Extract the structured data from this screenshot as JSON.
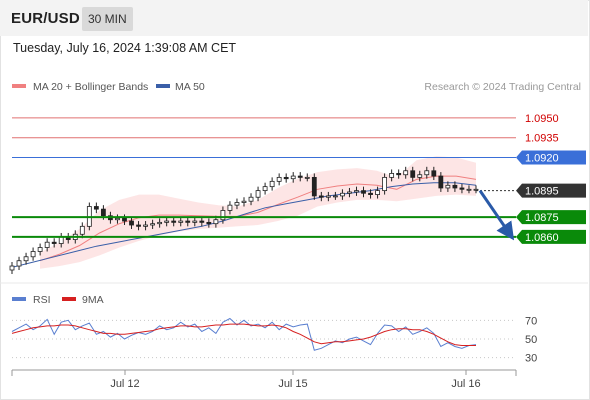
{
  "header": {
    "symbol": "EUR/USD",
    "timeframe": "30 MIN",
    "datetime": "Tuesday, July 16, 2024 1:39:08 AM CET"
  },
  "legend": {
    "bollinger": "MA 20 + Bollinger Bands",
    "ma50": "MA 50",
    "credit": "Research © 2024 Trading Central",
    "rsi": "RSI",
    "ma9": "9MA"
  },
  "colors": {
    "candle_up": "#ffffff",
    "candle_body": "#222222",
    "ma20": "#f08080",
    "bollinger_fill": "#fde0e0",
    "ma50": "#3a5fa8",
    "resistance": "#e07070",
    "pivot": "#3a6fd8",
    "support": "#0a8a0a",
    "current": "#333333",
    "rsi": "#5a7fd0",
    "rsi_ma": "#d62020",
    "arrow": "#2a5aa8"
  },
  "chart_data": [
    {
      "type": "candlestick",
      "x_ticks": [
        "Jul 12",
        "Jul 15",
        "Jul 16"
      ],
      "y_range": [
        1.0835,
        1.0965
      ],
      "levels": [
        {
          "label": "1.0950",
          "value": 1.095,
          "kind": "resistance"
        },
        {
          "label": "1.0935",
          "value": 1.0935,
          "kind": "resistance"
        },
        {
          "label": "1.0920",
          "value": 1.092,
          "kind": "pivot"
        },
        {
          "label": "1.0895",
          "value": 1.0895,
          "kind": "current"
        },
        {
          "label": "1.0875",
          "value": 1.0875,
          "kind": "support"
        },
        {
          "label": "1.0860",
          "value": 1.086,
          "kind": "support"
        }
      ],
      "close": [
        1.0838,
        1.0842,
        1.0845,
        1.0849,
        1.0852,
        1.0856,
        1.0855,
        1.086,
        1.0858,
        1.0862,
        1.0868,
        1.0883,
        1.0881,
        1.0876,
        1.0873,
        1.0874,
        1.0872,
        1.0869,
        1.0868,
        1.0869,
        1.087,
        1.0871,
        1.0872,
        1.0871,
        1.0872,
        1.0871,
        1.0872,
        1.0871,
        1.087,
        1.0873,
        1.088,
        1.0884,
        1.0886,
        1.0887,
        1.089,
        1.0895,
        1.0898,
        1.0902,
        1.0905,
        1.0904,
        1.0906,
        1.0905,
        1.0905,
        1.0891,
        1.089,
        1.0891,
        1.0891,
        1.0893,
        1.0894,
        1.0895,
        1.0893,
        1.0892,
        1.0895,
        1.0905,
        1.0908,
        1.0907,
        1.091,
        1.0905,
        1.0907,
        1.091,
        1.0906,
        1.0897,
        1.0899,
        1.0897,
        1.0896,
        1.0896,
        1.0896
      ],
      "bollinger_upper": [
        1.0848,
        1.0856,
        1.0866,
        1.088,
        1.0888,
        1.0892,
        1.0892,
        1.0889,
        1.0886,
        1.0884,
        1.0883,
        1.0888,
        1.0897,
        1.0904,
        1.0909,
        1.0911,
        1.0912,
        1.091,
        1.0905,
        1.0918,
        1.0921,
        1.092,
        1.0916
      ],
      "bollinger_lower": [
        1.0836,
        1.0838,
        1.0841,
        1.0846,
        1.0852,
        1.0857,
        1.0861,
        1.0864,
        1.0866,
        1.0867,
        1.0868,
        1.0869,
        1.0872,
        1.0876,
        1.0883,
        1.0886,
        1.0888,
        1.0888,
        1.0887,
        1.0889,
        1.0891,
        1.0892,
        1.0891
      ],
      "ma50": [
        1.0837,
        1.0841,
        1.0845,
        1.0849,
        1.0853,
        1.0856,
        1.0859,
        1.0862,
        1.0865,
        1.0868,
        1.0872,
        1.0877,
        1.0882,
        1.0885,
        1.0888,
        1.0891,
        1.0893,
        1.0895,
        1.0898,
        1.09,
        1.0901,
        1.0901,
        1.0899
      ],
      "forecast_arrow": {
        "from": 1.0895,
        "to": 1.086
      }
    },
    {
      "type": "line",
      "title": "RSI",
      "y_ticks": [
        70,
        50,
        30
      ],
      "series": [
        {
          "name": "RSI",
          "values": [
            58,
            62,
            66,
            60,
            64,
            71,
            55,
            68,
            70,
            60,
            64,
            67,
            55,
            58,
            52,
            56,
            50,
            54,
            57,
            55,
            58,
            64,
            60,
            62,
            68,
            63,
            66,
            58,
            62,
            56,
            68,
            72,
            65,
            70,
            64,
            66,
            62,
            68,
            60,
            66,
            63,
            65,
            66,
            38,
            40,
            44,
            48,
            46,
            50,
            52,
            48,
            44,
            56,
            65,
            64,
            58,
            63,
            55,
            58,
            62,
            56,
            42,
            46,
            42,
            40,
            43,
            44
          ]
        },
        {
          "name": "9MA",
          "values": [
            56,
            58,
            60,
            62,
            63,
            64,
            64,
            65,
            65,
            64,
            62,
            60,
            58,
            56,
            56,
            55,
            55,
            56,
            57,
            58,
            59,
            61,
            62,
            63,
            64,
            64,
            63,
            63,
            64,
            65,
            65,
            66,
            66,
            66,
            65,
            64,
            64,
            65,
            64,
            62,
            58,
            55,
            51,
            47,
            45,
            46,
            47,
            47,
            48,
            49,
            50,
            52,
            55,
            58,
            60,
            61,
            61,
            60,
            60,
            58,
            55,
            51,
            47,
            44,
            43,
            43,
            43
          ]
        }
      ]
    }
  ]
}
